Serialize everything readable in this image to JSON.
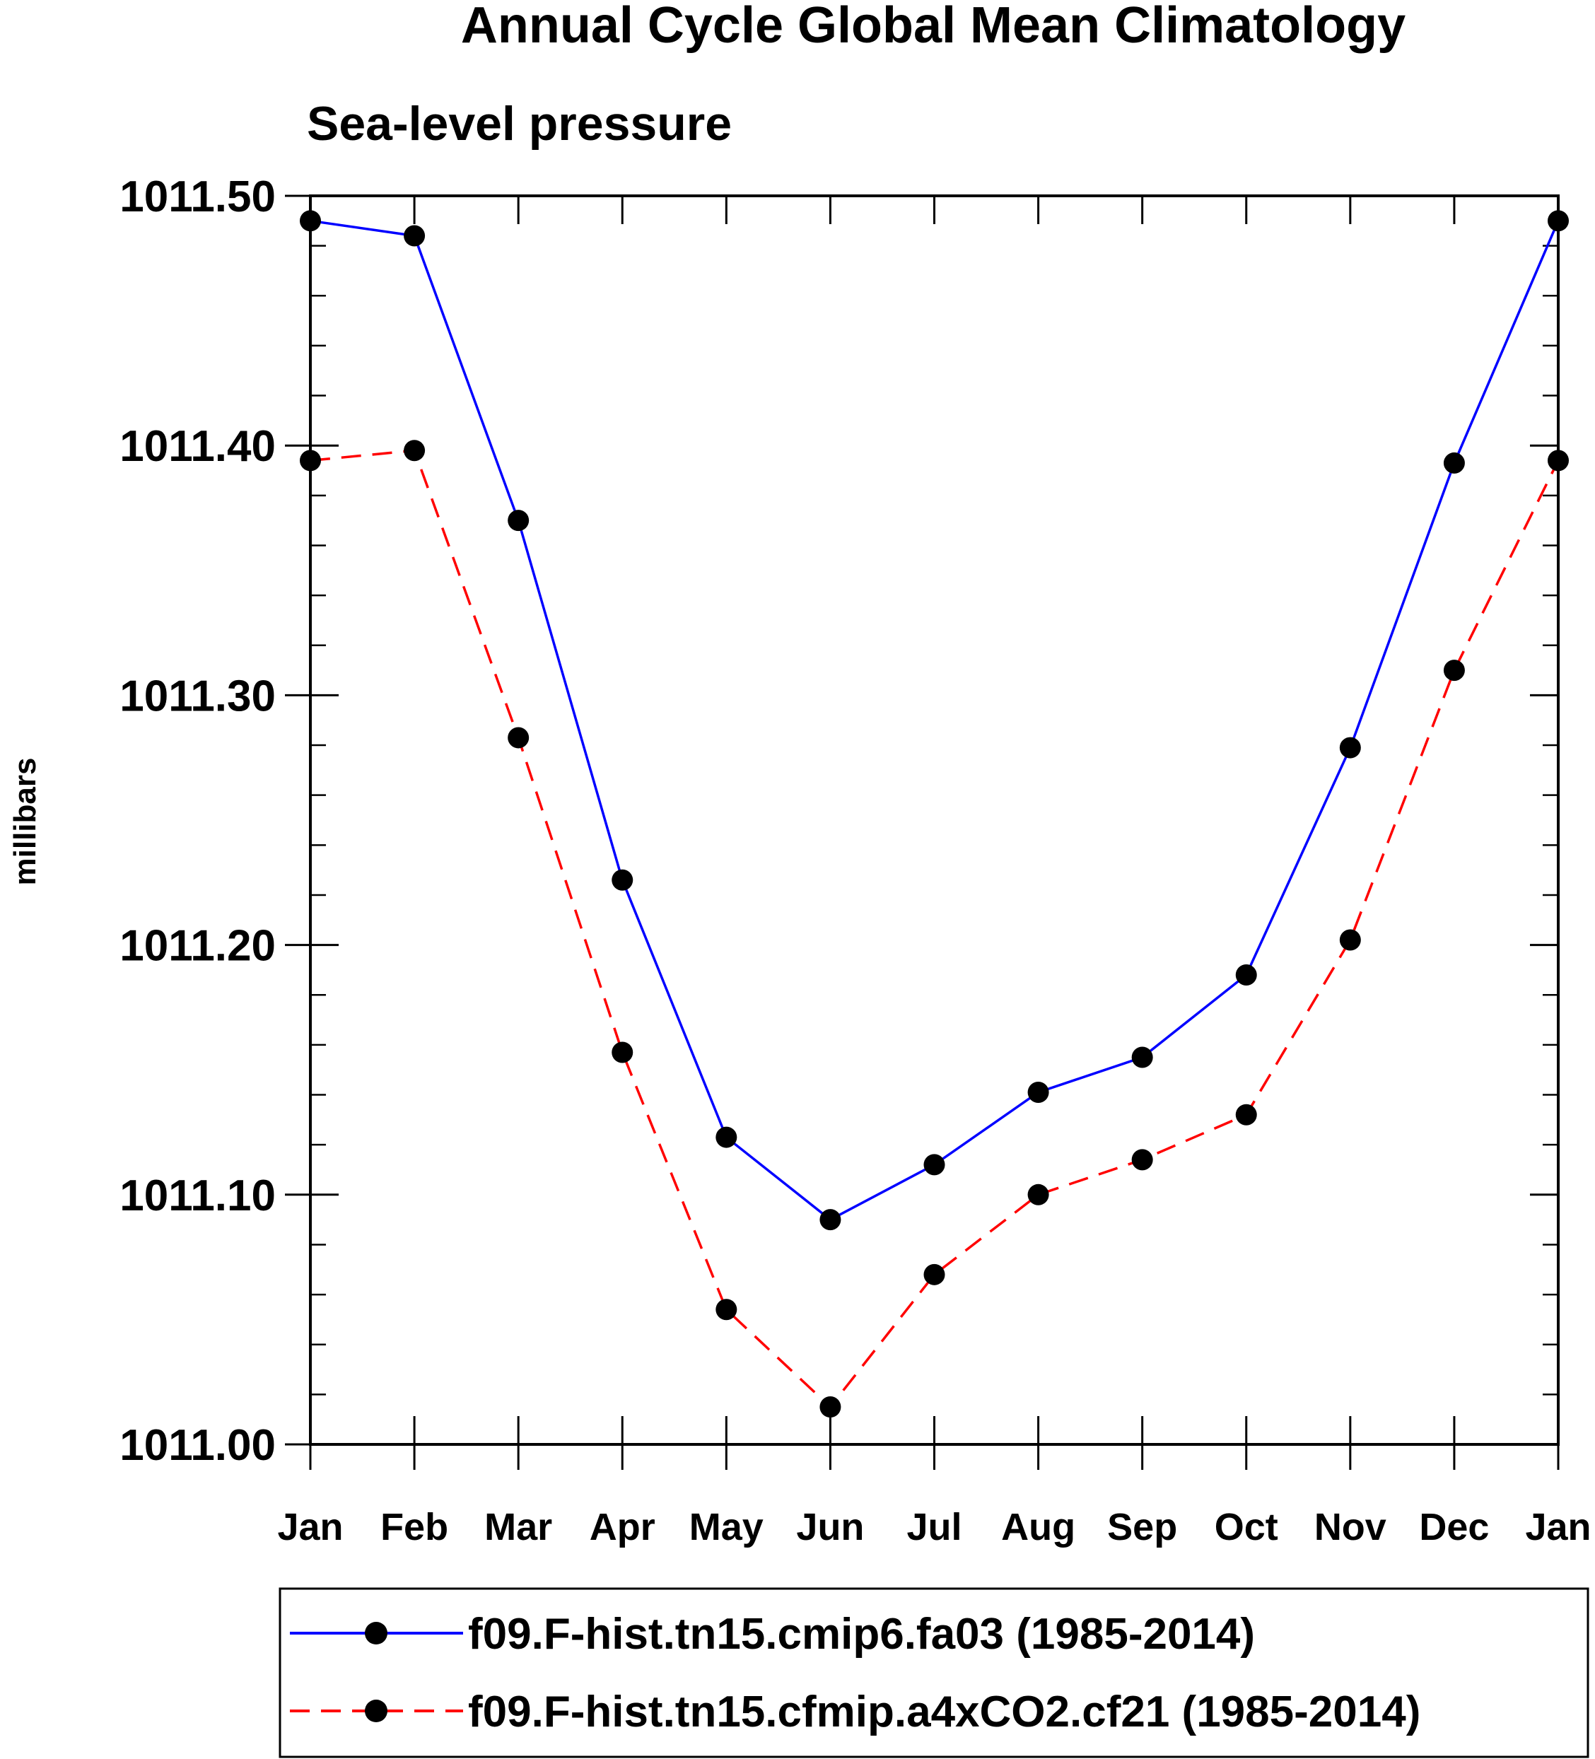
{
  "chart_data": {
    "type": "line",
    "title": "Annual Cycle Global Mean Climatology",
    "subtitle": "Sea-level pressure",
    "xlabel": "",
    "ylabel": "millibars",
    "categories": [
      "Jan",
      "Feb",
      "Mar",
      "Apr",
      "May",
      "Jun",
      "Jul",
      "Aug",
      "Sep",
      "Oct",
      "Nov",
      "Dec",
      "Jan"
    ],
    "ylim": [
      1011.0,
      1011.5
    ],
    "y_ticks": [
      "1011.00",
      "1011.10",
      "1011.20",
      "1011.30",
      "1011.40",
      "1011.50"
    ],
    "y_tick_values": [
      1011.0,
      1011.1,
      1011.2,
      1011.3,
      1011.4,
      1011.5
    ],
    "y_minor_step": 0.02,
    "grid": false,
    "legend_position": "bottom",
    "series": [
      {
        "name": "f09.F-hist.tn15.cmip6.fa03 (1985-2014)",
        "color": "#0000ff",
        "line_style": "solid",
        "marker": "filled-circle",
        "values": [
          1011.49,
          1011.484,
          1011.37,
          1011.226,
          1011.123,
          1011.09,
          1011.112,
          1011.141,
          1011.155,
          1011.188,
          1011.279,
          1011.393,
          1011.49
        ]
      },
      {
        "name": "f09.F-hist.tn15.cfmip.a4xCO2.cf21 (1985-2014)",
        "color": "#ff0000",
        "line_style": "dashed",
        "marker": "filled-circle",
        "values": [
          1011.394,
          1011.398,
          1011.283,
          1011.157,
          1011.054,
          1011.015,
          1011.068,
          1011.1,
          1011.114,
          1011.132,
          1011.202,
          1011.31,
          1011.394
        ]
      }
    ]
  }
}
